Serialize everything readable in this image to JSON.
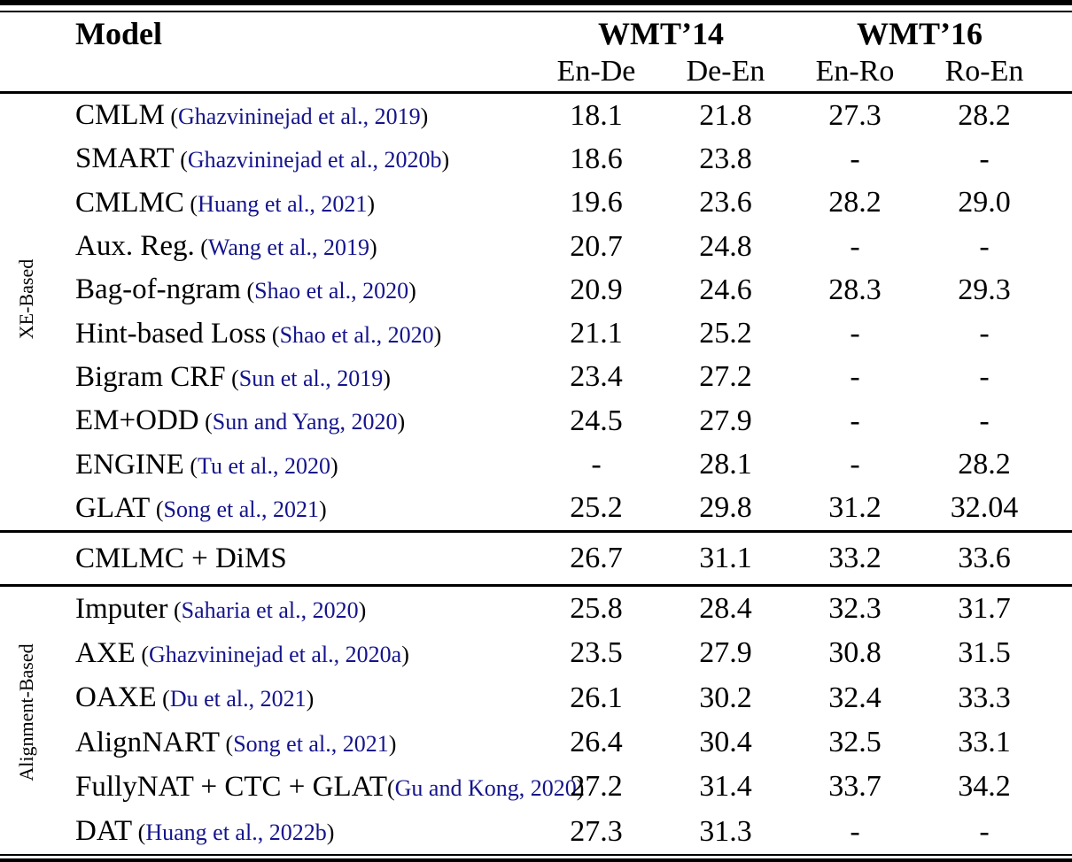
{
  "table": {
    "citation_parens": [
      "(",
      ")"
    ],
    "colors": {
      "text": "#000000",
      "citation_link": "#14148C",
      "rule": "#000000",
      "background": "#ffffff"
    },
    "header": {
      "model_label": "Model",
      "groups": [
        {
          "label": "WMT’14",
          "subcols": [
            "En-De",
            "De-En"
          ]
        },
        {
          "label": "WMT’16",
          "subcols": [
            "En-Ro",
            "Ro-En"
          ]
        }
      ]
    },
    "sections": [
      {
        "group_label": "XE-Based",
        "rows": [
          {
            "model": "CMLM",
            "citation": "Ghazvininejad et al., 2019",
            "values": [
              "18.1",
              "21.8",
              "27.3",
              "28.2"
            ]
          },
          {
            "model": "SMART",
            "citation": "Ghazvininejad et al., 2020b",
            "values": [
              "18.6",
              "23.8",
              "-",
              "-"
            ]
          },
          {
            "model": "CMLMC",
            "citation": "Huang et al., 2021",
            "values": [
              "19.6",
              "23.6",
              "28.2",
              "29.0"
            ]
          },
          {
            "model": "Aux. Reg.",
            "citation": "Wang et al., 2019",
            "values": [
              "20.7",
              "24.8",
              "-",
              "-"
            ]
          },
          {
            "model": "Bag-of-ngram",
            "citation": "Shao et al., 2020",
            "values": [
              "20.9",
              "24.6",
              "28.3",
              "29.3"
            ]
          },
          {
            "model": "Hint-based Loss",
            "citation": "Shao et al., 2020",
            "values": [
              "21.1",
              "25.2",
              "-",
              "-"
            ]
          },
          {
            "model": "Bigram CRF",
            "citation": "Sun et al., 2019",
            "values": [
              "23.4",
              "27.2",
              "-",
              "-"
            ]
          },
          {
            "model": "EM+ODD",
            "citation": "Sun and Yang, 2020",
            "values": [
              "24.5",
              "27.9",
              "-",
              "-"
            ]
          },
          {
            "model": "ENGINE",
            "citation": "Tu et al., 2020",
            "values": [
              "-",
              "28.1",
              "-",
              "28.2"
            ]
          },
          {
            "model": "GLAT",
            "citation": "Song et al., 2021",
            "values": [
              "25.2",
              "29.8",
              "31.2",
              "32.04"
            ]
          }
        ]
      },
      {
        "group_label": "",
        "rows": [
          {
            "model": "CMLMC + DiMS",
            "citation": "",
            "values": [
              "26.7",
              "31.1",
              "33.2",
              "33.6"
            ]
          }
        ]
      },
      {
        "group_label": "Alignment-Based",
        "rows": [
          {
            "model": "Imputer",
            "citation": "Saharia et al., 2020",
            "values": [
              "25.8",
              "28.4",
              "32.3",
              "31.7"
            ]
          },
          {
            "model": "AXE",
            "citation": "Ghazvininejad et al., 2020a",
            "values": [
              "23.5",
              "27.9",
              "30.8",
              "31.5"
            ]
          },
          {
            "model": "OAXE",
            "citation": "Du et al., 2021",
            "values": [
              "26.1",
              "30.2",
              "32.4",
              "33.3"
            ]
          },
          {
            "model": "AlignNART",
            "citation": "Song et al., 2021",
            "values": [
              "26.4",
              "30.4",
              "32.5",
              "33.1"
            ]
          },
          {
            "model": "FullyNAT + CTC + GLAT",
            "citation": "Gu and Kong, 2020",
            "tight": true,
            "values": [
              "27.2",
              "31.4",
              "33.7",
              "34.2"
            ]
          },
          {
            "model": "DAT",
            "citation": "Huang et al., 2022b",
            "values": [
              "27.3",
              "31.3",
              "-",
              "-"
            ]
          }
        ]
      }
    ]
  }
}
